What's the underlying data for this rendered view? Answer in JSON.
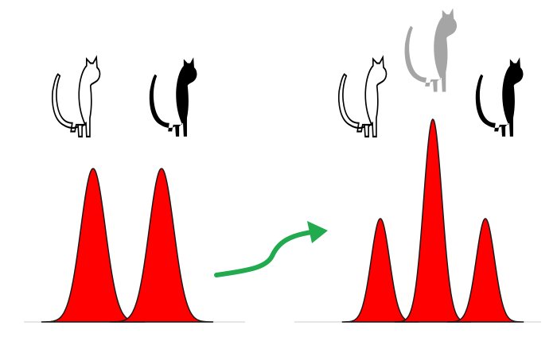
{
  "colors": {
    "background": "#ffffff",
    "peak_fill": "#ff0000",
    "peak_stroke": "#1a1a1a",
    "baseline": "#e6e6e6",
    "arrow": "#22aa4e",
    "cat_white_fill": "#ffffff",
    "cat_white_outline": "#000000",
    "cat_black": "#000000",
    "cat_gray": "#a5a5a5"
  },
  "left_panel": {
    "cats": [
      {
        "style": "white-outline",
        "icon": "cat-outline-icon"
      },
      {
        "style": "black",
        "icon": "cat-black-icon"
      }
    ],
    "peaks": [
      {
        "relative_height": 1.0
      },
      {
        "relative_height": 1.0
      }
    ]
  },
  "arrow": {
    "icon": "green-curved-arrow-icon"
  },
  "right_panel": {
    "cats": [
      {
        "style": "white-outline",
        "icon": "cat-outline-icon"
      },
      {
        "style": "gray",
        "icon": "cat-gray-icon"
      },
      {
        "style": "black",
        "icon": "cat-black-icon"
      }
    ],
    "peaks": [
      {
        "relative_height": 0.51
      },
      {
        "relative_height": 1.0
      },
      {
        "relative_height": 0.51
      }
    ]
  }
}
